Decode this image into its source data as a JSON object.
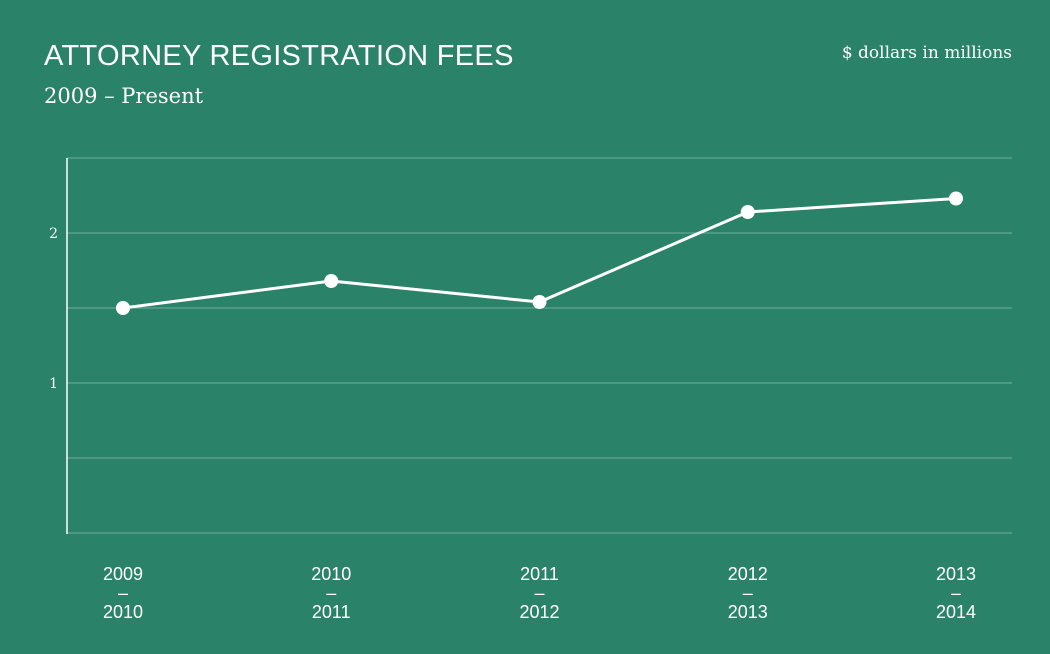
{
  "chart": {
    "title": "ATTORNEY REGISTRATION FEES",
    "subtitle": "2009 – Present",
    "unit_note": "$ dollars in millions"
  },
  "colors": {
    "background": "#2a8269",
    "line": "#ffffff",
    "gridline": "#6faf9b",
    "axis": "#ffffff"
  },
  "chart_data": {
    "type": "line",
    "title": "ATTORNEY REGISTRATION FEES",
    "subtitle": "2009 – Present",
    "ylabel": "$ dollars in millions",
    "xlabel": "",
    "categories": [
      [
        "2009",
        "–",
        "2010"
      ],
      [
        "2010",
        "–",
        "2011"
      ],
      [
        "2011",
        "–",
        "2012"
      ],
      [
        "2012",
        "–",
        "2013"
      ],
      [
        "2013",
        "–",
        "2014"
      ]
    ],
    "values": [
      1.5,
      1.68,
      1.54,
      2.14,
      2.23
    ],
    "ylim": [
      0,
      2.5
    ],
    "grid_lines": [
      0.5,
      1,
      1.5,
      2,
      2.5
    ],
    "y_tick_labels": [
      {
        "value": 1,
        "label": "1"
      },
      {
        "value": 2,
        "label": "2"
      }
    ],
    "grid": true,
    "legend": "none"
  }
}
